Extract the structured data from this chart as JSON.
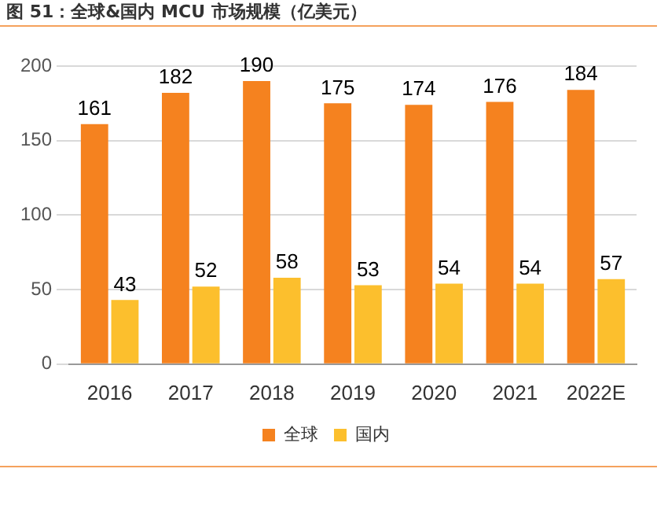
{
  "chart_data": {
    "type": "bar",
    "title": "图 51：全球&国内 MCU 市场规模（亿美元）",
    "categories": [
      "2016",
      "2017",
      "2018",
      "2019",
      "2020",
      "2021",
      "2022E"
    ],
    "series": [
      {
        "name": "全球",
        "color": "#f5821f",
        "values": [
          161,
          182,
          190,
          175,
          174,
          176,
          184
        ]
      },
      {
        "name": "国内",
        "color": "#fcbf2d",
        "values": [
          43,
          52,
          58,
          53,
          54,
          54,
          57
        ]
      }
    ],
    "ylim": [
      0,
      200
    ],
    "yticks": [
      0,
      50,
      100,
      150,
      200
    ],
    "grid": "y",
    "legend": "bottom",
    "data_labels": true
  }
}
